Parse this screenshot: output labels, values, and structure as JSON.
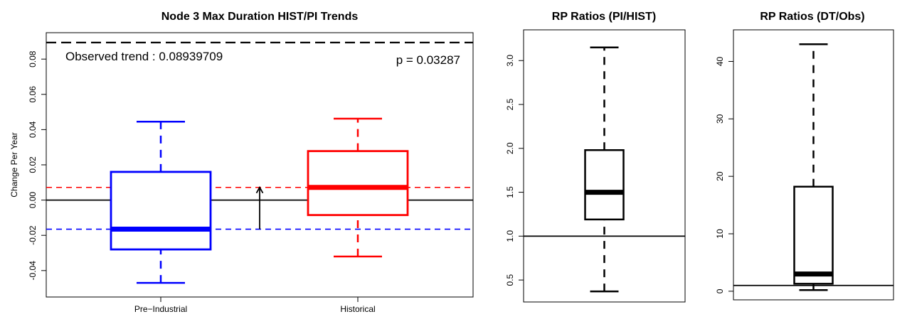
{
  "chart_data": [
    {
      "type": "box",
      "title": "Node 3 Max Duration HIST/PI Trends",
      "xlabel": "",
      "ylabel": "Change Per Year",
      "ylim": [
        -0.055,
        0.095
      ],
      "yticks": [
        -0.04,
        -0.02,
        0.0,
        0.02,
        0.04,
        0.06,
        0.08
      ],
      "ytick_labels": [
        "-0.04",
        "-0.02",
        "0.00",
        "0.02",
        "0.04",
        "0.06",
        "0.08"
      ],
      "categories": [
        "Pre−Industrial",
        "Historical"
      ],
      "boxes": [
        {
          "name": "Pre−Industrial",
          "color": "#0000ff",
          "whisker_low": -0.047,
          "q1": -0.028,
          "median": -0.0165,
          "q3": 0.016,
          "whisker_high": 0.0445
        },
        {
          "name": "Historical",
          "color": "#ff0000",
          "whisker_low": -0.032,
          "q1": -0.0085,
          "median": 0.0072,
          "q3": 0.0278,
          "whisker_high": 0.0462
        }
      ],
      "reference_lines": {
        "observed_trend": 0.08939709,
        "zero": 0.0,
        "pi_median": -0.0165,
        "hist_median": 0.0072
      },
      "arrow": {
        "from": -0.0165,
        "to": 0.0072
      },
      "annotations": {
        "observed": "Observed trend : 0.08939709",
        "pvalue": "p = 0.03287"
      }
    },
    {
      "type": "box",
      "title": "RP Ratios (PI/HIST)",
      "ylim": [
        0.25,
        3.35
      ],
      "yticks": [
        0.5,
        1.0,
        1.5,
        2.0,
        2.5,
        3.0
      ],
      "ytick_labels": [
        "0.5",
        "1.0",
        "1.5",
        "2.0",
        "2.5",
        "3.0"
      ],
      "box": {
        "whisker_low": 0.37,
        "q1": 1.19,
        "median": 1.5,
        "q3": 1.98,
        "whisker_high": 3.15
      },
      "reference_line": 1.0
    },
    {
      "type": "box",
      "title": "RP Ratios (DT/Obs)",
      "ylim": [
        -1.5,
        45.5
      ],
      "yticks": [
        0,
        10,
        20,
        30,
        40
      ],
      "ytick_labels": [
        "0",
        "10",
        "20",
        "30",
        "40"
      ],
      "box": {
        "whisker_low": 0.2,
        "q1": 1.3,
        "median": 3.0,
        "q3": 18.2,
        "whisker_high": 43.0
      },
      "reference_line": 1.0
    }
  ]
}
